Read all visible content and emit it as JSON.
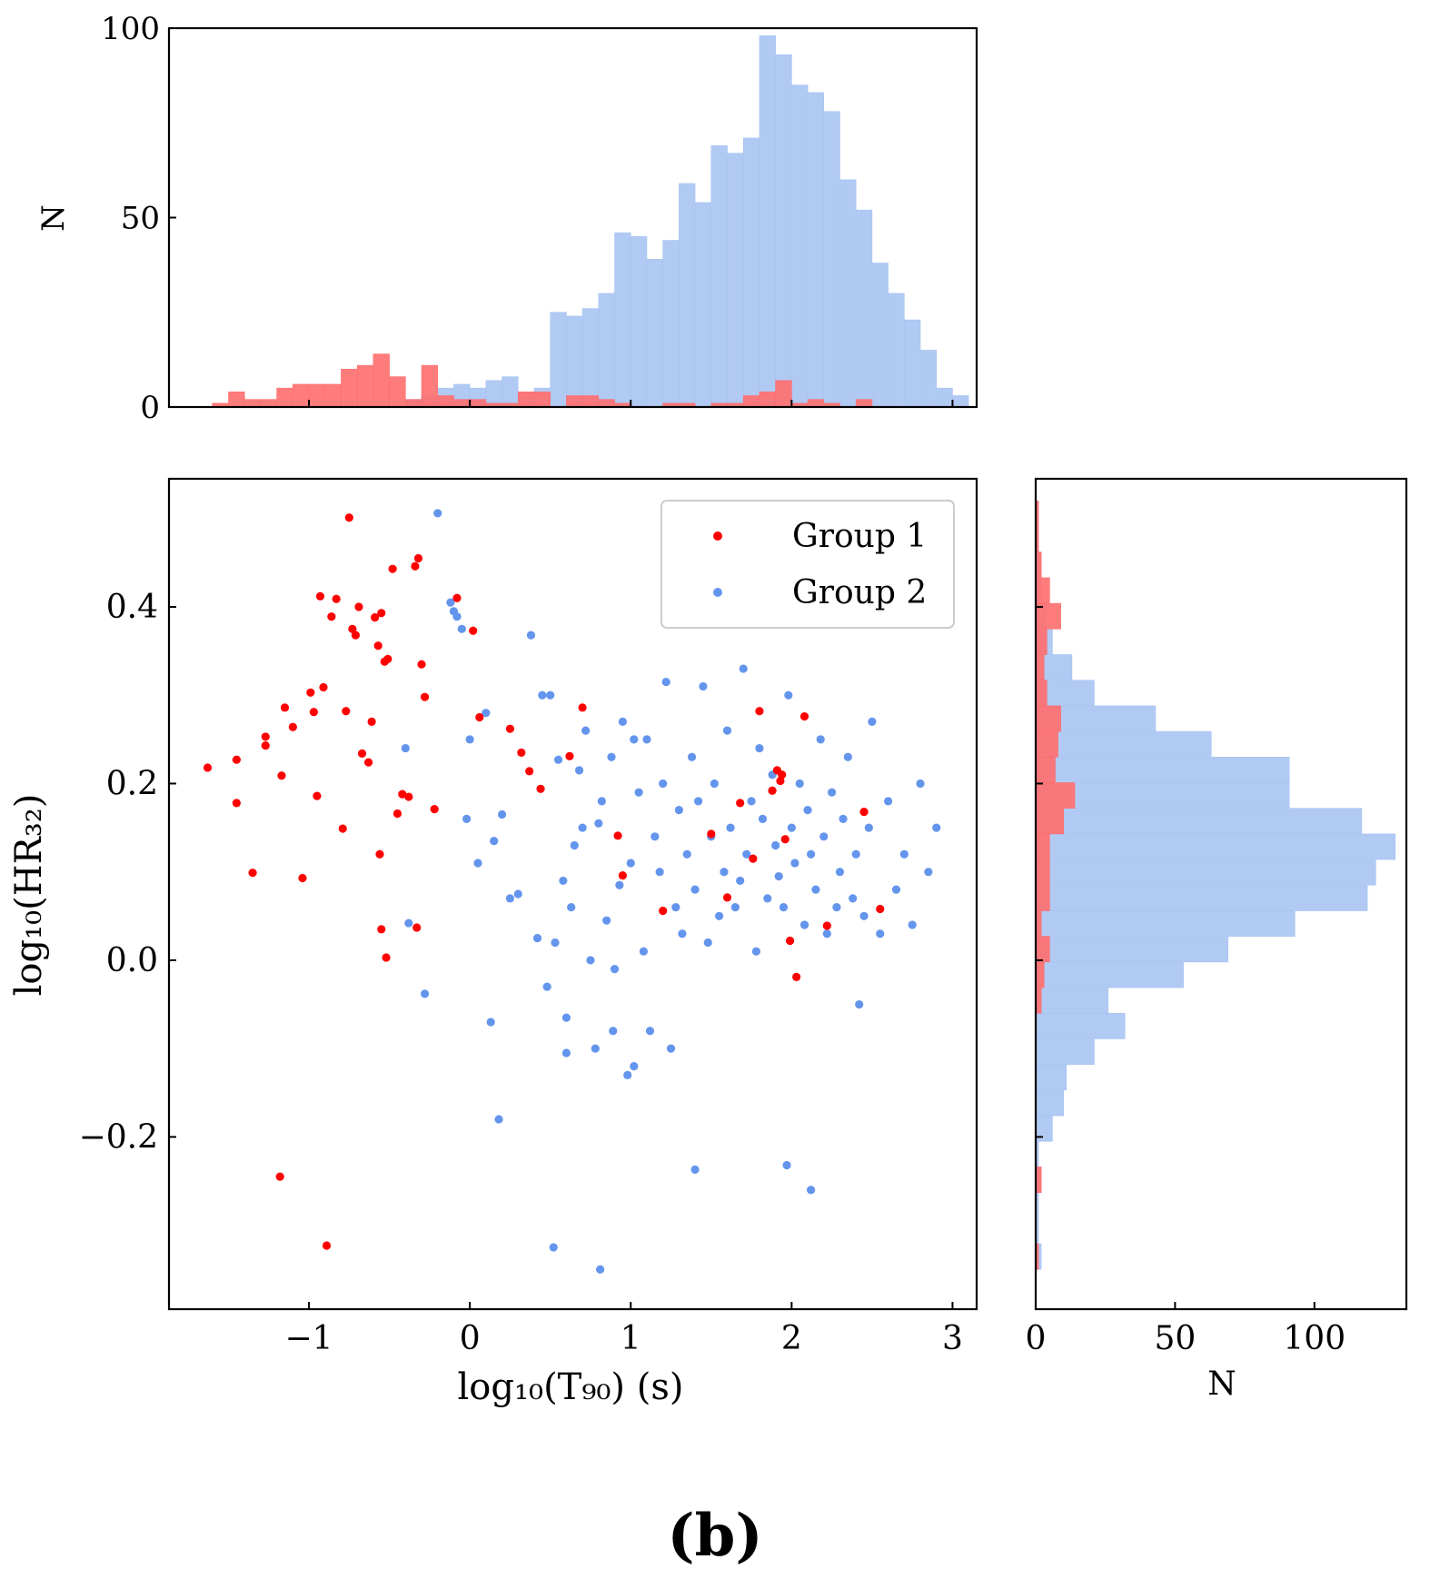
{
  "figure_label": "(b)",
  "colors": {
    "group1": "#ff0000",
    "group2": "#6495ed",
    "group1_hist": "#ff6e6e",
    "group2_hist": "#a8c4f2",
    "axis": "#000000",
    "legend_border": "#cccccc"
  },
  "chart_data": [
    {
      "type": "histogram",
      "title": "",
      "xlabel": "",
      "ylabel": "N",
      "xlim": [
        -1.87,
        3.15
      ],
      "ylim": [
        0,
        100
      ],
      "yticks": [
        0,
        50,
        100
      ],
      "bin_width": 0.1,
      "series": [
        {
          "name": "Group 1",
          "bins": [
            [
              -1.6,
              1
            ],
            [
              -1.5,
              4
            ],
            [
              -1.4,
              2
            ],
            [
              -1.3,
              2
            ],
            [
              -1.2,
              5
            ],
            [
              -1.1,
              6
            ],
            [
              -1.0,
              6
            ],
            [
              -0.9,
              6
            ],
            [
              -0.8,
              10
            ],
            [
              -0.7,
              11
            ],
            [
              -0.6,
              14
            ],
            [
              -0.5,
              8
            ],
            [
              -0.4,
              2
            ],
            [
              -0.3,
              11
            ],
            [
              -0.2,
              3
            ],
            [
              -0.1,
              2
            ],
            [
              0.0,
              2
            ],
            [
              0.1,
              1
            ],
            [
              0.2,
              1
            ],
            [
              0.3,
              4
            ],
            [
              0.4,
              4
            ],
            [
              0.6,
              3
            ],
            [
              0.7,
              3
            ],
            [
              0.8,
              2
            ],
            [
              0.9,
              1
            ],
            [
              1.2,
              1
            ],
            [
              1.3,
              1
            ],
            [
              1.5,
              1
            ],
            [
              1.6,
              1
            ],
            [
              1.7,
              3
            ],
            [
              1.8,
              4
            ],
            [
              1.9,
              7
            ],
            [
              2.0,
              1
            ],
            [
              2.1,
              2
            ],
            [
              2.2,
              1
            ],
            [
              2.4,
              2
            ]
          ]
        },
        {
          "name": "Group 2",
          "bins": [
            [
              -0.4,
              2
            ],
            [
              -0.3,
              3
            ],
            [
              -0.2,
              5
            ],
            [
              -0.1,
              6
            ],
            [
              0.0,
              5
            ],
            [
              0.1,
              7
            ],
            [
              0.2,
              8
            ],
            [
              0.3,
              4
            ],
            [
              0.4,
              5
            ],
            [
              0.5,
              25
            ],
            [
              0.6,
              24
            ],
            [
              0.7,
              26
            ],
            [
              0.8,
              30
            ],
            [
              0.9,
              46
            ],
            [
              1.0,
              45
            ],
            [
              1.1,
              39
            ],
            [
              1.2,
              44
            ],
            [
              1.3,
              59
            ],
            [
              1.4,
              54
            ],
            [
              1.5,
              69
            ],
            [
              1.6,
              67
            ],
            [
              1.7,
              71
            ],
            [
              1.8,
              98
            ],
            [
              1.9,
              93
            ],
            [
              2.0,
              85
            ],
            [
              2.1,
              83
            ],
            [
              2.2,
              78
            ],
            [
              2.3,
              60
            ],
            [
              2.4,
              52
            ],
            [
              2.5,
              38
            ],
            [
              2.6,
              30
            ],
            [
              2.7,
              23
            ],
            [
              2.8,
              15
            ],
            [
              2.9,
              5
            ],
            [
              3.0,
              3
            ]
          ]
        }
      ]
    },
    {
      "type": "scatter",
      "title": "",
      "xlabel": "log₁₀(T₉₀) (s)",
      "ylabel": "log₁₀(HR₃₂)",
      "xlim": [
        -1.87,
        3.15
      ],
      "ylim": [
        -0.395,
        0.545
      ],
      "xticks": [
        -1,
        0,
        1,
        2,
        3
      ],
      "xtick_labels": [
        "−1",
        "0",
        "1",
        "2",
        "3"
      ],
      "yticks": [
        -0.2,
        0.0,
        0.2,
        0.4
      ],
      "ytick_labels": [
        "−0.2",
        "0.0",
        "0.2",
        "0.4"
      ],
      "legend": {
        "position": "top-right",
        "entries": [
          "Group 1",
          "Group 2"
        ]
      },
      "series": [
        {
          "name": "Group 1",
          "x": [
            -1.63,
            -1.45,
            -1.45,
            -1.35,
            -1.27,
            -1.27,
            -1.17,
            -1.15,
            -1.1,
            -1.04,
            -0.99,
            -0.97,
            -0.95,
            -0.93,
            -0.91,
            -0.86,
            -0.83,
            -0.79,
            -0.77,
            -0.75,
            -0.73,
            -0.71,
            -0.69,
            -0.67,
            -0.63,
            -0.61,
            -0.59,
            -0.57,
            -0.55,
            -0.53,
            -0.51,
            -0.48,
            -0.45,
            -0.42,
            -0.38,
            -0.34,
            -0.32,
            -0.3,
            -0.28,
            -0.22,
            -0.08,
            0.02,
            0.06,
            0.25,
            0.32,
            0.37,
            0.44,
            0.62,
            0.7,
            0.92,
            0.95,
            1.2,
            1.5,
            1.6,
            1.68,
            1.76,
            1.8,
            1.88,
            1.91,
            1.93,
            1.94,
            1.96,
            1.99,
            2.03,
            2.08,
            2.22,
            2.45,
            2.55,
            -1.18,
            -0.89,
            -0.56,
            -0.55,
            -0.52,
            -0.33
          ],
          "y": [
            0.218,
            0.227,
            0.178,
            0.099,
            0.253,
            0.243,
            0.209,
            0.286,
            0.264,
            0.093,
            0.303,
            0.281,
            0.186,
            0.412,
            0.309,
            0.389,
            0.409,
            0.149,
            0.282,
            0.501,
            0.375,
            0.368,
            0.4,
            0.234,
            0.224,
            0.27,
            0.388,
            0.356,
            0.393,
            0.338,
            0.341,
            0.443,
            0.166,
            0.188,
            0.185,
            0.446,
            0.455,
            0.335,
            0.298,
            0.171,
            0.41,
            0.373,
            0.275,
            0.262,
            0.235,
            0.214,
            0.194,
            0.231,
            0.286,
            0.141,
            0.096,
            0.056,
            0.143,
            0.071,
            0.178,
            0.115,
            0.282,
            0.192,
            0.215,
            0.203,
            0.21,
            0.137,
            0.022,
            -0.019,
            0.276,
            0.039,
            0.168,
            0.058,
            -0.245,
            -0.323,
            0.12,
            0.035,
            0.003,
            0.037
          ]
        },
        {
          "name": "Group 2",
          "x": [
            -0.2,
            -0.12,
            -0.1,
            -0.08,
            -0.05,
            -0.02,
            0.0,
            0.05,
            0.1,
            0.15,
            0.2,
            0.25,
            0.3,
            0.38,
            0.42,
            0.45,
            0.48,
            0.5,
            0.53,
            0.55,
            0.58,
            0.6,
            0.63,
            0.65,
            0.68,
            0.7,
            0.72,
            0.75,
            0.78,
            0.8,
            0.82,
            0.85,
            0.88,
            0.9,
            0.93,
            0.95,
            0.98,
            1.0,
            1.02,
            1.05,
            1.08,
            1.1,
            1.12,
            1.15,
            1.18,
            1.2,
            1.22,
            1.25,
            1.28,
            1.3,
            1.32,
            1.35,
            1.38,
            1.4,
            1.42,
            1.45,
            1.48,
            1.5,
            1.52,
            1.55,
            1.58,
            1.6,
            1.62,
            1.65,
            1.68,
            1.7,
            1.72,
            1.75,
            1.78,
            1.8,
            1.82,
            1.85,
            1.88,
            1.9,
            1.92,
            1.95,
            1.98,
            2.0,
            2.02,
            2.05,
            2.08,
            2.1,
            2.12,
            2.15,
            2.18,
            2.2,
            2.22,
            2.25,
            2.28,
            2.3,
            2.32,
            2.35,
            2.38,
            2.4,
            2.42,
            2.45,
            2.48,
            2.5,
            2.55,
            2.6,
            2.65,
            2.7,
            2.75,
            2.8,
            2.85,
            2.9,
            0.52,
            0.81,
            1.4,
            2.12,
            1.97,
            0.6,
            1.02,
            0.89,
            0.18,
            -0.28,
            0.13,
            -0.38,
            -0.4
          ],
          "y": [
            0.506,
            0.405,
            0.395,
            0.389,
            0.375,
            0.16,
            0.25,
            0.11,
            0.28,
            0.135,
            0.165,
            0.07,
            0.075,
            0.368,
            0.025,
            0.3,
            -0.03,
            0.3,
            0.02,
            0.227,
            0.09,
            -0.065,
            0.06,
            0.13,
            0.215,
            0.15,
            0.26,
            0.0,
            -0.1,
            0.155,
            0.18,
            0.045,
            0.23,
            -0.01,
            0.085,
            0.27,
            -0.13,
            0.11,
            0.25,
            0.19,
            0.01,
            0.25,
            -0.08,
            0.14,
            0.1,
            0.2,
            0.315,
            -0.1,
            0.06,
            0.17,
            0.03,
            0.12,
            0.23,
            0.08,
            0.18,
            0.31,
            0.02,
            0.14,
            0.2,
            0.05,
            0.1,
            0.26,
            0.15,
            0.06,
            0.09,
            0.33,
            0.12,
            0.18,
            0.01,
            0.24,
            0.16,
            0.07,
            0.21,
            0.13,
            0.095,
            0.06,
            0.3,
            0.15,
            0.11,
            0.2,
            0.04,
            0.17,
            0.12,
            0.08,
            0.25,
            0.14,
            0.03,
            0.19,
            0.06,
            0.1,
            0.16,
            0.23,
            0.07,
            0.12,
            -0.05,
            0.05,
            0.15,
            0.27,
            0.03,
            0.18,
            0.08,
            0.12,
            0.04,
            0.2,
            0.1,
            0.15,
            -0.325,
            -0.35,
            -0.237,
            -0.26,
            -0.232,
            -0.105,
            -0.12,
            -0.08,
            -0.18,
            -0.038,
            -0.07,
            0.042,
            0.24
          ]
        }
      ]
    },
    {
      "type": "histogram",
      "orientation": "horizontal",
      "title": "",
      "xlabel": "N",
      "ylabel": "",
      "xlim": [
        0,
        133
      ],
      "ylim": [
        -0.395,
        0.545
      ],
      "xticks": [
        0,
        50,
        100
      ],
      "yticks": [
        -0.2,
        0.0,
        0.2,
        0.4
      ],
      "bin_width": 0.029,
      "series": [
        {
          "name": "Group 1",
          "bins": [
            [
              0.491,
              1
            ],
            [
              0.462,
              1
            ],
            [
              0.433,
              2
            ],
            [
              0.404,
              5
            ],
            [
              0.375,
              9
            ],
            [
              0.346,
              4
            ],
            [
              0.317,
              3
            ],
            [
              0.288,
              4
            ],
            [
              0.259,
              9
            ],
            [
              0.23,
              8
            ],
            [
              0.201,
              7
            ],
            [
              0.172,
              14
            ],
            [
              0.143,
              10
            ],
            [
              0.114,
              5
            ],
            [
              0.085,
              5
            ],
            [
              0.056,
              5
            ],
            [
              0.027,
              2
            ],
            [
              -0.002,
              5
            ],
            [
              -0.031,
              3
            ],
            [
              -0.06,
              2
            ],
            [
              -0.263,
              2
            ],
            [
              -0.35,
              1
            ]
          ]
        },
        {
          "name": "Group 2",
          "bins": [
            [
              0.491,
              1
            ],
            [
              0.462,
              1
            ],
            [
              0.433,
              2
            ],
            [
              0.404,
              2
            ],
            [
              0.375,
              4
            ],
            [
              0.346,
              6
            ],
            [
              0.317,
              13
            ],
            [
              0.288,
              21
            ],
            [
              0.259,
              43
            ],
            [
              0.23,
              63
            ],
            [
              0.201,
              91
            ],
            [
              0.172,
              91
            ],
            [
              0.143,
              117
            ],
            [
              0.114,
              129
            ],
            [
              0.085,
              122
            ],
            [
              0.056,
              119
            ],
            [
              0.027,
              93
            ],
            [
              -0.002,
              69
            ],
            [
              -0.031,
              53
            ],
            [
              -0.06,
              26
            ],
            [
              -0.089,
              32
            ],
            [
              -0.118,
              21
            ],
            [
              -0.147,
              11
            ],
            [
              -0.176,
              10
            ],
            [
              -0.205,
              6
            ],
            [
              -0.234,
              1
            ],
            [
              -0.263,
              2
            ],
            [
              -0.292,
              1
            ],
            [
              -0.321,
              1
            ],
            [
              -0.35,
              2
            ]
          ]
        }
      ]
    }
  ]
}
